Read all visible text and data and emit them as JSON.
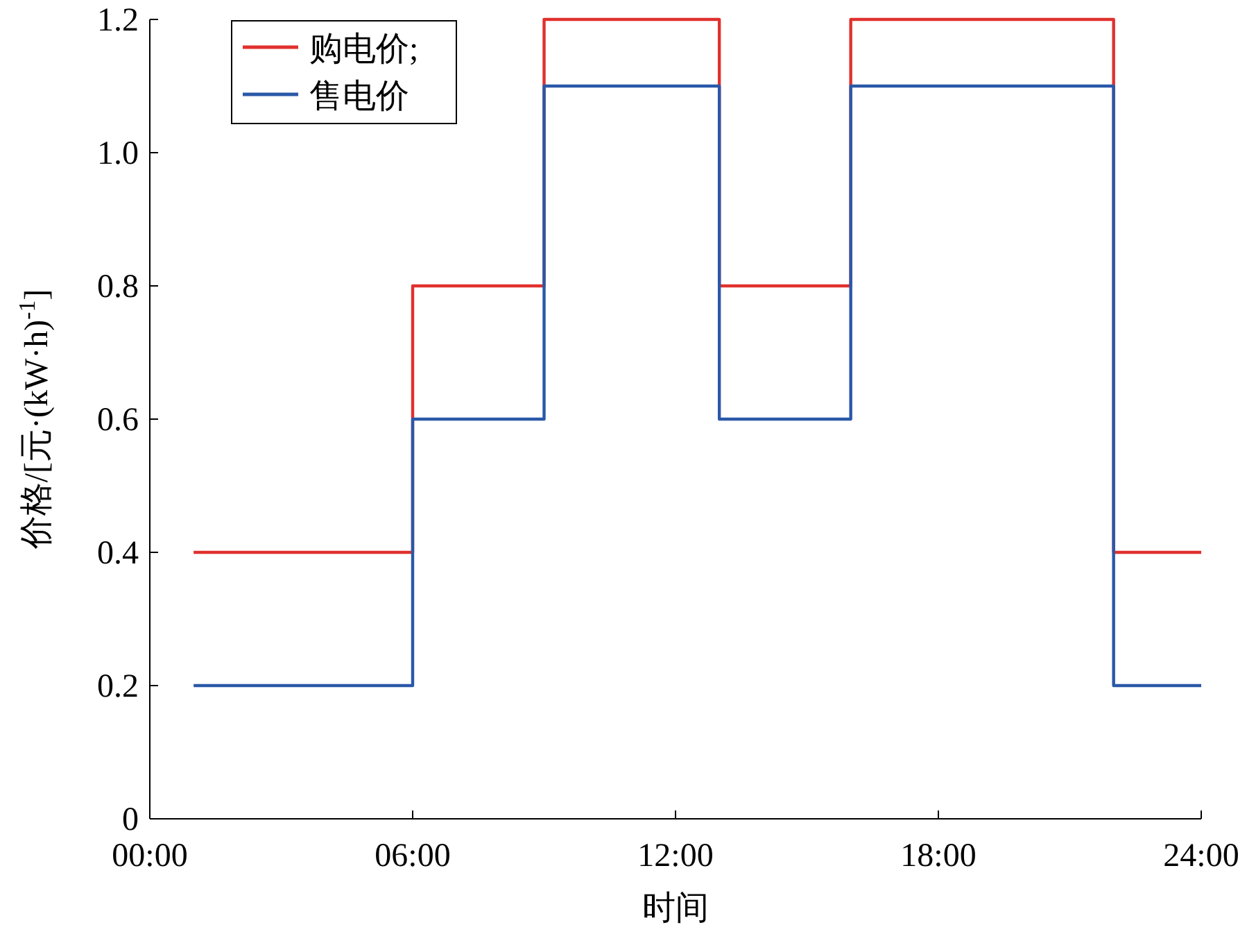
{
  "chart_data": {
    "type": "step",
    "xlabel": "时间",
    "ylabel": "价格/[元·(kW·h)$^{-1}$]",
    "x": [
      1,
      6,
      9,
      13,
      16,
      22,
      24
    ],
    "series": [
      {
        "name": "购电价;",
        "color": "#e0312d",
        "values": [
          0.4,
          0.8,
          1.2,
          0.8,
          1.2,
          0.4,
          0.4
        ]
      },
      {
        "name": "售电价",
        "color": "#2a58a8",
        "values": [
          0.2,
          0.6,
          1.1,
          0.6,
          1.1,
          0.2,
          0.2
        ]
      }
    ],
    "xlim": [
      0,
      24
    ],
    "ylim": [
      0,
      1.2
    ],
    "xticks": [
      {
        "value": 0,
        "label": "00:00"
      },
      {
        "value": 6,
        "label": "06:00"
      },
      {
        "value": 12,
        "label": "12:00"
      },
      {
        "value": 18,
        "label": "18:00"
      },
      {
        "value": 24,
        "label": "24:00"
      }
    ],
    "yticks": [
      {
        "value": 0,
        "label": "0"
      },
      {
        "value": 0.2,
        "label": "0.2"
      },
      {
        "value": 0.4,
        "label": "0.4"
      },
      {
        "value": 0.6,
        "label": "0.6"
      },
      {
        "value": 0.8,
        "label": "0.8"
      },
      {
        "value": 1.0,
        "label": "1.0"
      },
      {
        "value": 1.2,
        "label": "1.2"
      }
    ],
    "legend": "top left",
    "grid": false,
    "line_style": "solid",
    "marker": "none"
  }
}
